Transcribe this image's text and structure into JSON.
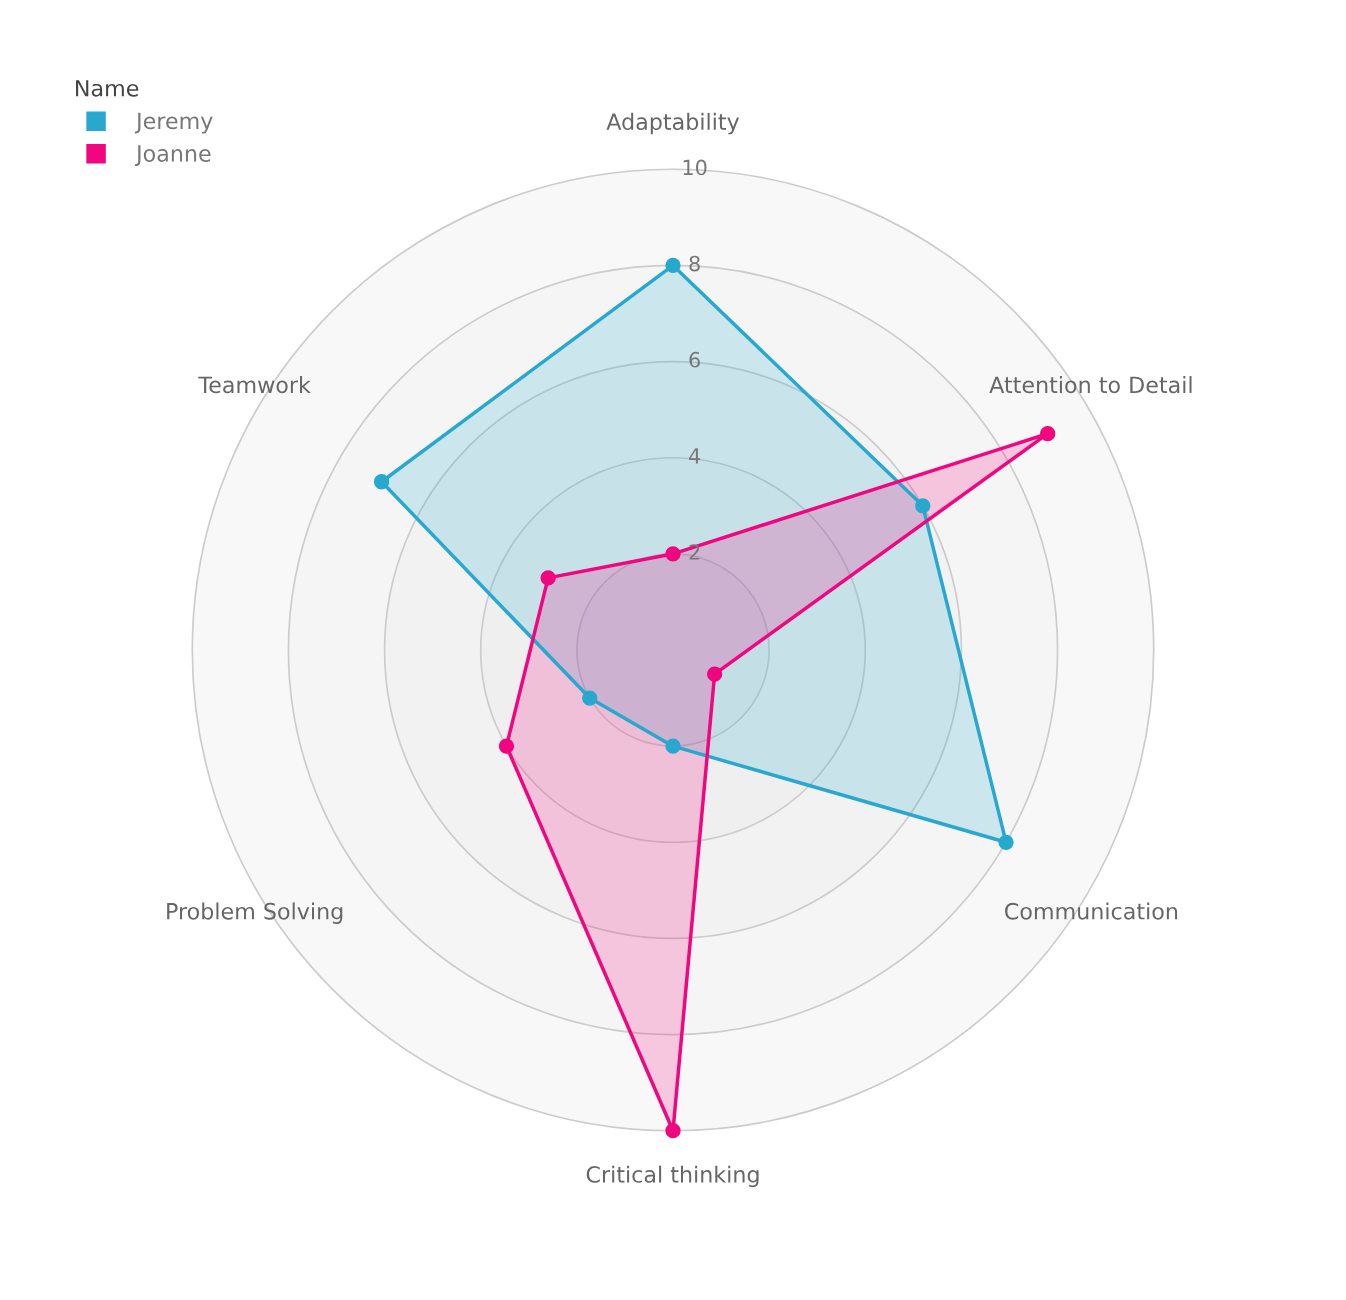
{
  "chart_data": {
    "type": "radar",
    "categories": [
      "Adaptability",
      "Attention to Detail",
      "Communication",
      "Critical thinking",
      "Problem Solving",
      "Teamwork"
    ],
    "series": [
      {
        "name": "Jeremy",
        "color": "#29a8cf",
        "values": [
          8,
          6,
          8,
          2,
          2,
          7
        ]
      },
      {
        "name": "Joanne",
        "color": "#f0067f",
        "values": [
          2,
          9,
          1,
          10,
          4,
          3
        ]
      }
    ],
    "ylim": [
      0,
      10
    ],
    "yticks": [
      2,
      4,
      6,
      8,
      10
    ],
    "legend_title": "Name",
    "legend": "top left",
    "marker": "circle",
    "line_style": "solid",
    "grid": true
  }
}
